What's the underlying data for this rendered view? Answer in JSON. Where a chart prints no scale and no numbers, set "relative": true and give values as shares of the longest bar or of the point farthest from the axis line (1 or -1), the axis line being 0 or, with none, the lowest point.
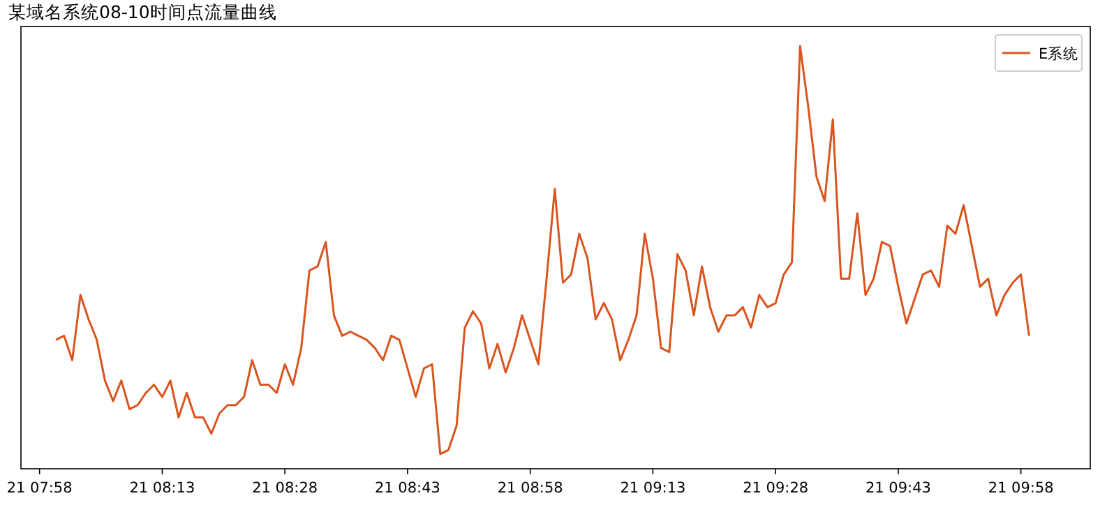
{
  "chart_data": {
    "type": "line",
    "title": "某域名系统08-10时间点流量曲线",
    "relative": true,
    "legend": "top right",
    "grid": false,
    "categories": [
      "21 07:58",
      null,
      null,
      null,
      null,
      null,
      null,
      null,
      null,
      null,
      null,
      null,
      null,
      null,
      null,
      "21 08:13",
      null,
      null,
      null,
      null,
      null,
      null,
      null,
      null,
      null,
      null,
      null,
      null,
      null,
      null,
      "21 08:28",
      null,
      null,
      null,
      null,
      null,
      null,
      null,
      null,
      null,
      null,
      null,
      null,
      null,
      null,
      "21 08:43",
      null,
      null,
      null,
      null,
      null,
      null,
      null,
      null,
      null,
      null,
      null,
      null,
      null,
      null,
      "21 08:58",
      null,
      null,
      null,
      null,
      null,
      null,
      null,
      null,
      null,
      null,
      null,
      null,
      null,
      null,
      "21 09:13",
      null,
      null,
      null,
      null,
      null,
      null,
      null,
      null,
      null,
      null,
      null,
      null,
      null,
      null,
      "21 09:28",
      null,
      null,
      null,
      null,
      null,
      null,
      null,
      null,
      null,
      null,
      null,
      null,
      null,
      null,
      "21 09:43",
      null,
      null,
      null,
      null,
      null,
      null,
      null,
      null,
      null,
      null,
      null,
      null,
      null,
      null,
      "21 09:58",
      null
    ],
    "series": [
      {
        "name": "E系统",
        "color": "#d9541e",
        "values": [
          null,
          null,
          0.28,
          0.29,
          0.23,
          0.39,
          0.33,
          0.28,
          0.18,
          0.13,
          0.18,
          0.11,
          0.12,
          0.15,
          0.17,
          0.14,
          0.18,
          0.09,
          0.15,
          0.09,
          0.09,
          0.05,
          0.1,
          0.12,
          0.12,
          0.14,
          0.23,
          0.17,
          0.17,
          0.15,
          0.22,
          0.17,
          0.26,
          0.45,
          0.46,
          0.52,
          0.34,
          0.29,
          0.3,
          0.29,
          0.28,
          0.26,
          0.23,
          0.29,
          0.28,
          0.21,
          0.14,
          0.21,
          0.22,
          0,
          0.01,
          0.07,
          0.31,
          0.35,
          0.32,
          0.21,
          0.27,
          0.2,
          0.26,
          0.34,
          0.28,
          0.22,
          0.43,
          0.65,
          0.42,
          0.44,
          0.54,
          0.48,
          0.33,
          0.37,
          0.33,
          0.23,
          0.28,
          0.34,
          0.54,
          0.43,
          0.26,
          0.25,
          0.49,
          0.45,
          0.34,
          0.46,
          0.36,
          0.3,
          0.34,
          0.34,
          0.36,
          0.31,
          0.39,
          0.36,
          0.37,
          0.44,
          0.47,
          1,
          0.85,
          0.68,
          0.62,
          0.82,
          0.43,
          0.43,
          0.59,
          0.39,
          0.43,
          0.52,
          0.51,
          0.41,
          0.32,
          0.38,
          0.44,
          0.45,
          0.41,
          0.56,
          0.54,
          0.61,
          0.51,
          0.41,
          0.43,
          0.34,
          0.39,
          0.42,
          0.44,
          0.29
        ]
      }
    ]
  }
}
